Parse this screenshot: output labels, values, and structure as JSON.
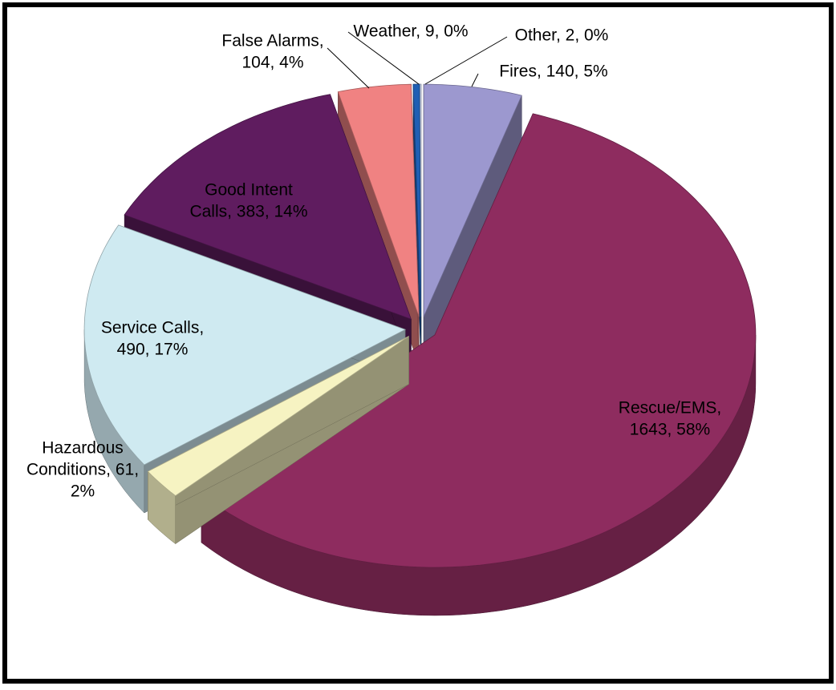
{
  "chart_data": {
    "type": "pie3d",
    "values": [
      140,
      1643,
      61,
      490,
      383,
      104,
      9,
      2
    ],
    "value_labels": [
      [
        "Fires, 140, 5%"
      ],
      [
        "Rescue/EMS,",
        "1643, 58%"
      ],
      [
        "Hazardous",
        "Conditions, 61,",
        "2%"
      ],
      [
        "Service Calls,",
        "490, 17%"
      ],
      [
        "Good Intent",
        "Calls, 383, 14%"
      ],
      [
        "False Alarms,",
        "104, 4%"
      ],
      [
        "Weather, 9, 0%"
      ],
      [
        "Other, 2, 0%"
      ]
    ],
    "colors": [
      "#9c98cf",
      "#8e2c5f",
      "#f6f3c2",
      "#cfeaf1",
      "#5f1c5f",
      "#f08282",
      "#1f5fb4",
      "#d4dcf2"
    ]
  }
}
